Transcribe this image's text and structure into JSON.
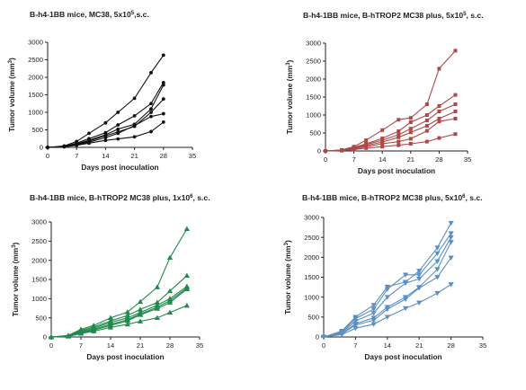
{
  "chart_data": [
    {
      "type": "line",
      "title": "B-h4-1BB mice, MC38, 5x10",
      "title_sup": "5",
      "title_suffix": ",s.c.",
      "xlabel": "Days post inoculation",
      "ylabel": "Tumor volume (mm",
      "ylabel_sup": "3",
      "ylabel_suffix": ")",
      "xlim": [
        0,
        35
      ],
      "ylim": [
        0,
        3000
      ],
      "xticks": [
        "0",
        "7",
        "14",
        "21",
        "28",
        "35"
      ],
      "yticks": [
        "0",
        "500",
        "1000",
        "1500",
        "2000",
        "2500",
        "3000"
      ],
      "color": "#111111",
      "marker": "circle",
      "grid": false,
      "series": [
        {
          "x": [
            0,
            4,
            7,
            10,
            14,
            17,
            21,
            25,
            28
          ],
          "y": [
            0,
            40,
            170,
            400,
            700,
            1000,
            1400,
            2130,
            2630
          ]
        },
        {
          "x": [
            0,
            4,
            7,
            10,
            14,
            17,
            21,
            25,
            28
          ],
          "y": [
            0,
            30,
            120,
            250,
            420,
            640,
            900,
            1250,
            1850
          ]
        },
        {
          "x": [
            0,
            4,
            7,
            10,
            14,
            17,
            21,
            25,
            28
          ],
          "y": [
            0,
            25,
            100,
            200,
            360,
            520,
            660,
            1100,
            1780
          ]
        },
        {
          "x": [
            0,
            4,
            7,
            10,
            14,
            17,
            21,
            25,
            28
          ],
          "y": [
            0,
            20,
            80,
            180,
            330,
            440,
            600,
            1000,
            1380
          ]
        },
        {
          "x": [
            0,
            4,
            7,
            10,
            14,
            17,
            21,
            25,
            28
          ],
          "y": [
            0,
            20,
            70,
            150,
            280,
            400,
            620,
            880,
            960
          ]
        },
        {
          "x": [
            0,
            4,
            7,
            10,
            14,
            17,
            21,
            25,
            28
          ],
          "y": [
            0,
            15,
            60,
            120,
            200,
            240,
            300,
            450,
            720
          ]
        }
      ]
    },
    {
      "type": "line",
      "title": "B-h4-1BB mice, B-hTROP2 MC38 plus, 5x10",
      "title_sup": "5",
      "title_suffix": ", s.c.",
      "xlabel": "Days post inoculation",
      "ylabel": "Tumor volume (mm",
      "ylabel_sup": "3",
      "ylabel_suffix": ")",
      "xlim": [
        0,
        35
      ],
      "ylim": [
        0,
        3000
      ],
      "xticks": [
        "0",
        "7",
        "14",
        "21",
        "28",
        "35"
      ],
      "yticks": [
        "0",
        "500",
        "1000",
        "1500",
        "2000",
        "2500",
        "3000"
      ],
      "color": "#b04848",
      "marker": "square",
      "grid": false,
      "series": [
        {
          "x": [
            0,
            4,
            7,
            10,
            14,
            18,
            21,
            25,
            28,
            32
          ],
          "y": [
            0,
            30,
            120,
            300,
            580,
            870,
            920,
            1300,
            2290,
            2790
          ]
        },
        {
          "x": [
            0,
            4,
            7,
            10,
            14,
            18,
            21,
            25,
            28,
            32
          ],
          "y": [
            0,
            25,
            100,
            200,
            350,
            550,
            800,
            1000,
            1250,
            1560
          ]
        },
        {
          "x": [
            0,
            4,
            7,
            10,
            14,
            18,
            21,
            25,
            28,
            32
          ],
          "y": [
            0,
            20,
            80,
            180,
            300,
            450,
            620,
            850,
            1100,
            1300
          ]
        },
        {
          "x": [
            0,
            4,
            7,
            10,
            14,
            18,
            21,
            25,
            28,
            32
          ],
          "y": [
            0,
            20,
            70,
            150,
            250,
            380,
            520,
            700,
            900,
            1100
          ]
        },
        {
          "x": [
            0,
            4,
            7,
            10,
            14,
            18,
            21,
            25,
            28,
            32
          ],
          "y": [
            0,
            15,
            60,
            120,
            200,
            260,
            340,
            560,
            820,
            900
          ]
        },
        {
          "x": [
            0,
            4,
            7,
            10,
            14,
            18,
            21,
            25,
            28,
            32
          ],
          "y": [
            0,
            10,
            40,
            80,
            120,
            160,
            200,
            260,
            360,
            470
          ]
        }
      ]
    },
    {
      "type": "line",
      "title": "B-h4-1BB mice, B-hTROP2 MC38 plus, 1x10",
      "title_sup": "6",
      "title_suffix": ", s.c.",
      "xlabel": "Days post inoculation",
      "ylabel": "Tumor volume (mm",
      "ylabel_sup": "3",
      "ylabel_suffix": ")",
      "xlim": [
        0,
        35
      ],
      "ylim": [
        0,
        3000
      ],
      "xticks": [
        "0",
        "7",
        "14",
        "21",
        "28",
        "35"
      ],
      "yticks": [
        "0",
        "500",
        "1000",
        "1500",
        "2000",
        "2500",
        "3000"
      ],
      "color": "#1f8a4c",
      "marker": "triangle-up",
      "grid": false,
      "series": [
        {
          "x": [
            0,
            4,
            7,
            10,
            14,
            18,
            21,
            25,
            28,
            32
          ],
          "y": [
            0,
            40,
            200,
            300,
            500,
            650,
            920,
            1300,
            2070,
            2820
          ]
        },
        {
          "x": [
            0,
            4,
            7,
            10,
            14,
            18,
            21,
            25,
            28,
            32
          ],
          "y": [
            0,
            35,
            170,
            260,
            420,
            560,
            720,
            900,
            1200,
            1600
          ]
        },
        {
          "x": [
            0,
            4,
            7,
            10,
            14,
            18,
            21,
            25,
            28,
            32
          ],
          "y": [
            0,
            30,
            150,
            230,
            380,
            500,
            640,
            830,
            1000,
            1320
          ]
        },
        {
          "x": [
            0,
            4,
            7,
            10,
            14,
            18,
            21,
            25,
            28,
            32
          ],
          "y": [
            0,
            25,
            130,
            200,
            330,
            450,
            600,
            780,
            950,
            1280
          ]
        },
        {
          "x": [
            0,
            4,
            7,
            10,
            14,
            18,
            21,
            25,
            28,
            32
          ],
          "y": [
            0,
            20,
            110,
            180,
            300,
            420,
            580,
            740,
            900,
            1250
          ]
        },
        {
          "x": [
            0,
            4,
            7,
            10,
            14,
            18,
            21,
            25,
            28,
            32
          ],
          "y": [
            0,
            15,
            90,
            150,
            250,
            330,
            410,
            500,
            640,
            820
          ]
        }
      ]
    },
    {
      "type": "line",
      "title": "B-h4-1BB mice, B-hTROP2 MC38 plus, 5x10",
      "title_sup": "6",
      "title_suffix": ", s.c.",
      "xlabel": "Days post inoculation",
      "ylabel": "Tumor volume (mm",
      "ylabel_sup": "3",
      "ylabel_suffix": ")",
      "xlim": [
        0,
        35
      ],
      "ylim": [
        0,
        3000
      ],
      "xticks": [
        "0",
        "7",
        "14",
        "21",
        "28",
        "35"
      ],
      "yticks": [
        "0",
        "500",
        "1000",
        "1500",
        "2000",
        "2500",
        "3000"
      ],
      "color": "#5b8fc4",
      "marker": "triangle-down",
      "grid": false,
      "series": [
        {
          "x": [
            0,
            4,
            7,
            11,
            14,
            18,
            21,
            25,
            28
          ],
          "y": [
            0,
            150,
            500,
            800,
            1260,
            1380,
            1660,
            2240,
            2860
          ]
        },
        {
          "x": [
            0,
            4,
            7,
            11,
            14,
            18,
            21,
            25,
            28
          ],
          "y": [
            0,
            130,
            460,
            700,
            1200,
            1560,
            1560,
            2100,
            2600
          ]
        },
        {
          "x": [
            0,
            4,
            7,
            11,
            14,
            18,
            21,
            25,
            28
          ],
          "y": [
            0,
            110,
            400,
            600,
            1000,
            1350,
            1460,
            1900,
            2500
          ]
        },
        {
          "x": [
            0,
            4,
            7,
            11,
            14,
            18,
            21,
            25,
            28
          ],
          "y": [
            0,
            90,
            330,
            480,
            750,
            1000,
            1250,
            1700,
            2380
          ]
        },
        {
          "x": [
            0,
            4,
            7,
            11,
            14,
            18,
            21,
            25,
            28
          ],
          "y": [
            0,
            80,
            300,
            420,
            700,
            950,
            1230,
            1500,
            1990
          ]
        },
        {
          "x": [
            0,
            4,
            7,
            11,
            14,
            18,
            21,
            25,
            28
          ],
          "y": [
            0,
            60,
            220,
            320,
            500,
            720,
            860,
            1100,
            1320
          ]
        }
      ]
    }
  ]
}
